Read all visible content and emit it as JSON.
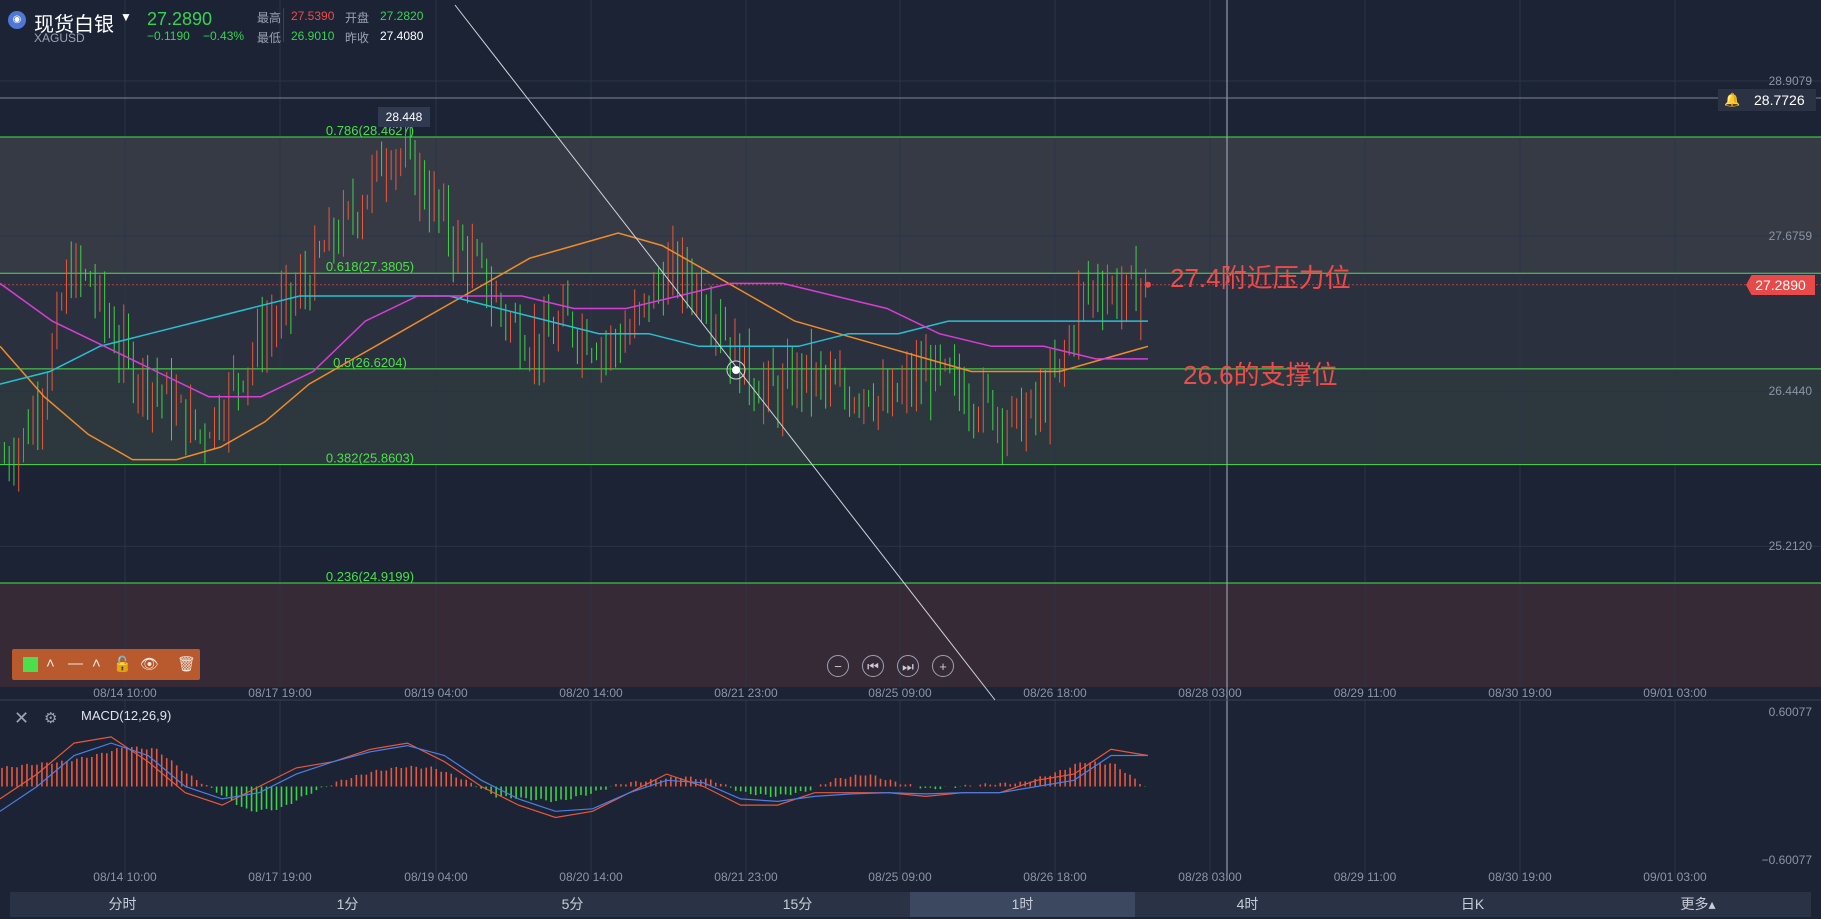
{
  "header": {
    "symbol_name": "现货白银",
    "symbol_code": "XAGUSD",
    "last_price": "27.2890",
    "change": "−0.1190",
    "change_pct": "−0.43%",
    "stats": [
      {
        "label": "最高",
        "value": "27.5390",
        "color": "#f04b4b"
      },
      {
        "label": "开盘",
        "value": "27.2820",
        "color": "#39d353"
      },
      {
        "label": "最低",
        "value": "26.9010",
        "color": "#39d353"
      },
      {
        "label": "昨收",
        "value": "27.4080",
        "color": "#ffffff"
      }
    ]
  },
  "price_tag": "27.2890",
  "alert_price": "28.7726",
  "peak_label": "28.448",
  "annotations": {
    "resistance": "27.4附近压力位",
    "support": "26.6的支撑位"
  },
  "nav_buttons": [
    "−",
    "⏮",
    "⏭",
    "+"
  ],
  "macd_title": "MACD(12,26,9)",
  "tabs": [
    {
      "label": "分时",
      "active": false
    },
    {
      "label": "1分",
      "active": false
    },
    {
      "label": "5分",
      "active": false
    },
    {
      "label": "15分",
      "active": false
    },
    {
      "label": "1时",
      "active": true
    },
    {
      "label": "4时",
      "active": false
    },
    {
      "label": "日K",
      "active": false
    },
    {
      "label": "更多▴",
      "active": false
    }
  ],
  "icons": [
    "candle-icon",
    "chevron-up-icon",
    "line-style-icon",
    "lock-icon",
    "eye-icon",
    "trash-icon",
    "bell-icon",
    "close-icon",
    "gear-icon"
  ],
  "chart_data": {
    "type": "candlestick",
    "y_range": [
      24.3,
      29.2
    ],
    "y_ticks": [
      "28.9079",
      "27.6759",
      "26.4440",
      "25.2120"
    ],
    "y_tick_values": [
      28.9079,
      27.6759,
      26.444,
      25.212
    ],
    "x_ticks": [
      "08/14 10:00",
      "08/17 19:00",
      "08/19 04:00",
      "08/20 14:00",
      "08/21 23:00",
      "08/25 09:00",
      "08/26 18:00",
      "08/28 03:00",
      "08/29 11:00",
      "08/30 19:00",
      "09/01 03:00"
    ],
    "current_price": 27.289,
    "alert_price": 28.7726,
    "fibonacci": [
      {
        "label": "0.786(28.4627)",
        "value": 28.4627
      },
      {
        "label": "0.618(27.3805)",
        "value": 27.3805
      },
      {
        "label": "0.5(26.6204)",
        "value": 26.6204
      },
      {
        "label": "0.382(25.8603)",
        "value": 25.8603
      },
      {
        "label": "0.236(24.9199)",
        "value": 24.9199
      }
    ],
    "price_series": [
      25.9,
      26.1,
      26.6,
      27.4,
      27.3,
      26.9,
      26.6,
      26.5,
      26.3,
      26.1,
      26.3,
      26.6,
      26.9,
      27.1,
      27.3,
      27.6,
      27.8,
      28.1,
      28.4,
      28.2,
      27.9,
      27.6,
      27.4,
      27.1,
      26.9,
      26.8,
      27.0,
      26.9,
      26.8,
      26.9,
      27.2,
      27.4,
      27.3,
      27.1,
      26.7,
      26.5,
      26.4,
      26.6,
      26.5,
      26.4,
      26.5,
      26.3,
      26.5,
      26.6,
      26.5,
      26.4,
      26.3,
      26.2,
      26.3,
      26.6,
      27.2,
      27.3,
      27.2,
      27.3
    ],
    "series": [
      {
        "name": "",
        "color": "#f08b2a",
        "values": [
          26.8,
          26.4,
          26.1,
          25.9,
          25.9,
          26.0,
          26.2,
          26.5,
          26.7,
          26.9,
          27.1,
          27.3,
          27.5,
          27.6,
          27.7,
          27.6,
          27.4,
          27.2,
          27.0,
          26.9,
          26.8,
          26.7,
          26.6,
          26.6,
          26.6,
          26.7,
          26.8
        ]
      },
      {
        "name": "",
        "color": "#26c0d4",
        "values": [
          26.5,
          26.6,
          26.8,
          26.9,
          27.0,
          27.1,
          27.2,
          27.2,
          27.2,
          27.2,
          27.1,
          27.0,
          26.9,
          26.9,
          26.8,
          26.8,
          26.8,
          26.9,
          26.9,
          27.0,
          27.0,
          27.0,
          27.0,
          27.0
        ]
      },
      {
        "name": "",
        "color": "#d63ed6",
        "values": [
          27.3,
          27.0,
          26.8,
          26.6,
          26.4,
          26.4,
          26.6,
          27.0,
          27.2,
          27.2,
          27.2,
          27.1,
          27.1,
          27.2,
          27.3,
          27.3,
          27.2,
          27.1,
          26.9,
          26.8,
          26.8,
          26.7,
          26.7
        ]
      }
    ],
    "macd": {
      "title": "MACD(12,26,9)",
      "y_ticks": [
        "0.60077",
        "−0.60077"
      ],
      "y_range": [
        -0.60077,
        0.60077
      ],
      "histogram": [
        0.15,
        0.18,
        0.2,
        0.25,
        0.32,
        0.3,
        0.1,
        -0.05,
        -0.2,
        -0.18,
        -0.05,
        0.05,
        0.12,
        0.16,
        0.15,
        0.05,
        -0.08,
        -0.1,
        -0.12,
        -0.06,
        0.02,
        0.05,
        0.08,
        0.05,
        -0.05,
        -0.08,
        -0.04,
        0.06,
        0.1,
        0.03,
        -0.02,
        0.0,
        0.02,
        0.03,
        0.1,
        0.2,
        0.18,
        0.0
      ],
      "macd_line": [
        -0.1,
        0.1,
        0.35,
        0.4,
        0.2,
        -0.05,
        -0.15,
        0.0,
        0.15,
        0.2,
        0.3,
        0.35,
        0.2,
        0.0,
        -0.15,
        -0.25,
        -0.2,
        -0.05,
        0.1,
        0.0,
        -0.15,
        -0.15,
        -0.05,
        -0.05,
        -0.05,
        -0.08,
        -0.05,
        -0.05,
        0.05,
        0.1,
        0.3,
        0.25
      ],
      "signal_line": [
        -0.2,
        0.0,
        0.25,
        0.35,
        0.25,
        0.0,
        -0.1,
        -0.05,
        0.1,
        0.2,
        0.28,
        0.33,
        0.25,
        0.05,
        -0.1,
        -0.2,
        -0.18,
        -0.05,
        0.05,
        0.03,
        -0.1,
        -0.12,
        -0.08,
        -0.06,
        -0.05,
        -0.06,
        -0.05,
        -0.05,
        0.0,
        0.05,
        0.25,
        0.25
      ]
    }
  }
}
